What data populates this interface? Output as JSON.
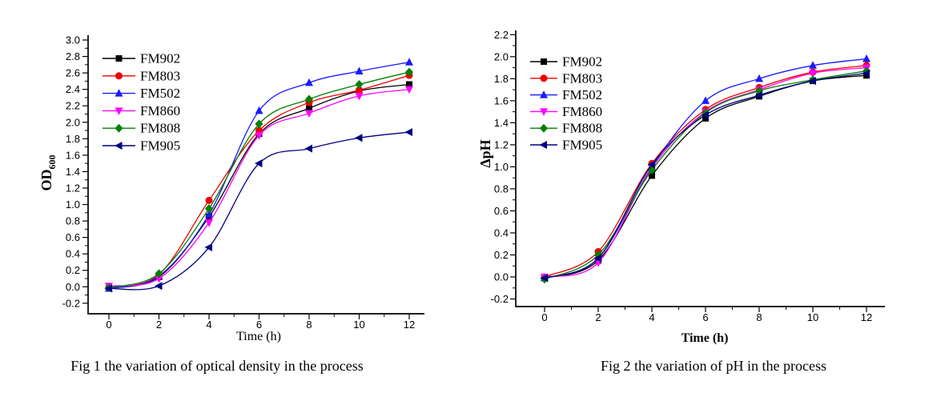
{
  "chart_data": [
    {
      "id": "fig1",
      "type": "line",
      "caption": "Fig 1 the variation of optical density in the process",
      "xlabel": "Time (h)",
      "xlabel_bold": false,
      "ylabel": "OD",
      "ylabel_sub": "600",
      "x": [
        0,
        2,
        4,
        6,
        8,
        10,
        12
      ],
      "xlim": [
        0,
        12
      ],
      "ylim": [
        -0.2,
        3.0
      ],
      "xtick_step": 2,
      "ytick_step": 0.2,
      "grid": false,
      "legend_position": "upper-left",
      "series": [
        {
          "name": "FM902",
          "color": "#000000",
          "marker": "square",
          "values": [
            -0.02,
            0.12,
            0.85,
            1.86,
            2.17,
            2.38,
            2.46
          ]
        },
        {
          "name": "FM803",
          "color": "#ee0000",
          "marker": "circle",
          "values": [
            -0.01,
            0.15,
            1.05,
            1.9,
            2.24,
            2.39,
            2.57
          ]
        },
        {
          "name": "FM502",
          "color": "#1a1aff",
          "marker": "triangle-up",
          "values": [
            -0.02,
            0.13,
            0.88,
            2.14,
            2.48,
            2.62,
            2.73
          ]
        },
        {
          "name": "FM860",
          "color": "#ff00ff",
          "marker": "triangle-down",
          "values": [
            0.01,
            0.1,
            0.78,
            1.84,
            2.11,
            2.32,
            2.4
          ]
        },
        {
          "name": "FM808",
          "color": "#008000",
          "marker": "diamond",
          "values": [
            -0.01,
            0.16,
            0.95,
            1.98,
            2.28,
            2.46,
            2.61
          ]
        },
        {
          "name": "FM905",
          "color": "#000080",
          "marker": "triangle-left",
          "values": [
            -0.02,
            0.01,
            0.48,
            1.5,
            1.68,
            1.81,
            1.88
          ]
        }
      ]
    },
    {
      "id": "fig2",
      "type": "line",
      "caption": "Fig 2 the variation of pH in the process",
      "xlabel": "Time (h)",
      "xlabel_bold": true,
      "ylabel": "ΔpH",
      "ylabel_sub": "",
      "x": [
        0,
        2,
        4,
        6,
        8,
        10,
        12
      ],
      "xlim": [
        0,
        12
      ],
      "ylim": [
        -0.2,
        2.2
      ],
      "xtick_step": 2,
      "ytick_step": 0.2,
      "grid": false,
      "legend_position": "upper-left",
      "series": [
        {
          "name": "FM902",
          "color": "#000000",
          "marker": "square",
          "values": [
            -0.01,
            0.15,
            0.92,
            1.44,
            1.64,
            1.78,
            1.83
          ]
        },
        {
          "name": "FM803",
          "color": "#ee0000",
          "marker": "circle",
          "values": [
            0.0,
            0.23,
            1.03,
            1.52,
            1.72,
            1.86,
            1.92
          ]
        },
        {
          "name": "FM502",
          "color": "#1a1aff",
          "marker": "triangle-up",
          "values": [
            -0.01,
            0.17,
            1.0,
            1.6,
            1.8,
            1.92,
            1.98
          ]
        },
        {
          "name": "FM860",
          "color": "#ff00ff",
          "marker": "triangle-down",
          "values": [
            0.0,
            0.13,
            0.99,
            1.5,
            1.7,
            1.85,
            1.9
          ]
        },
        {
          "name": "FM808",
          "color": "#008000",
          "marker": "diamond",
          "values": [
            -0.02,
            0.2,
            0.97,
            1.49,
            1.69,
            1.79,
            1.87
          ]
        },
        {
          "name": "FM905",
          "color": "#000080",
          "marker": "triangle-left",
          "values": [
            -0.01,
            0.17,
            1.02,
            1.47,
            1.65,
            1.78,
            1.85
          ]
        }
      ]
    }
  ]
}
